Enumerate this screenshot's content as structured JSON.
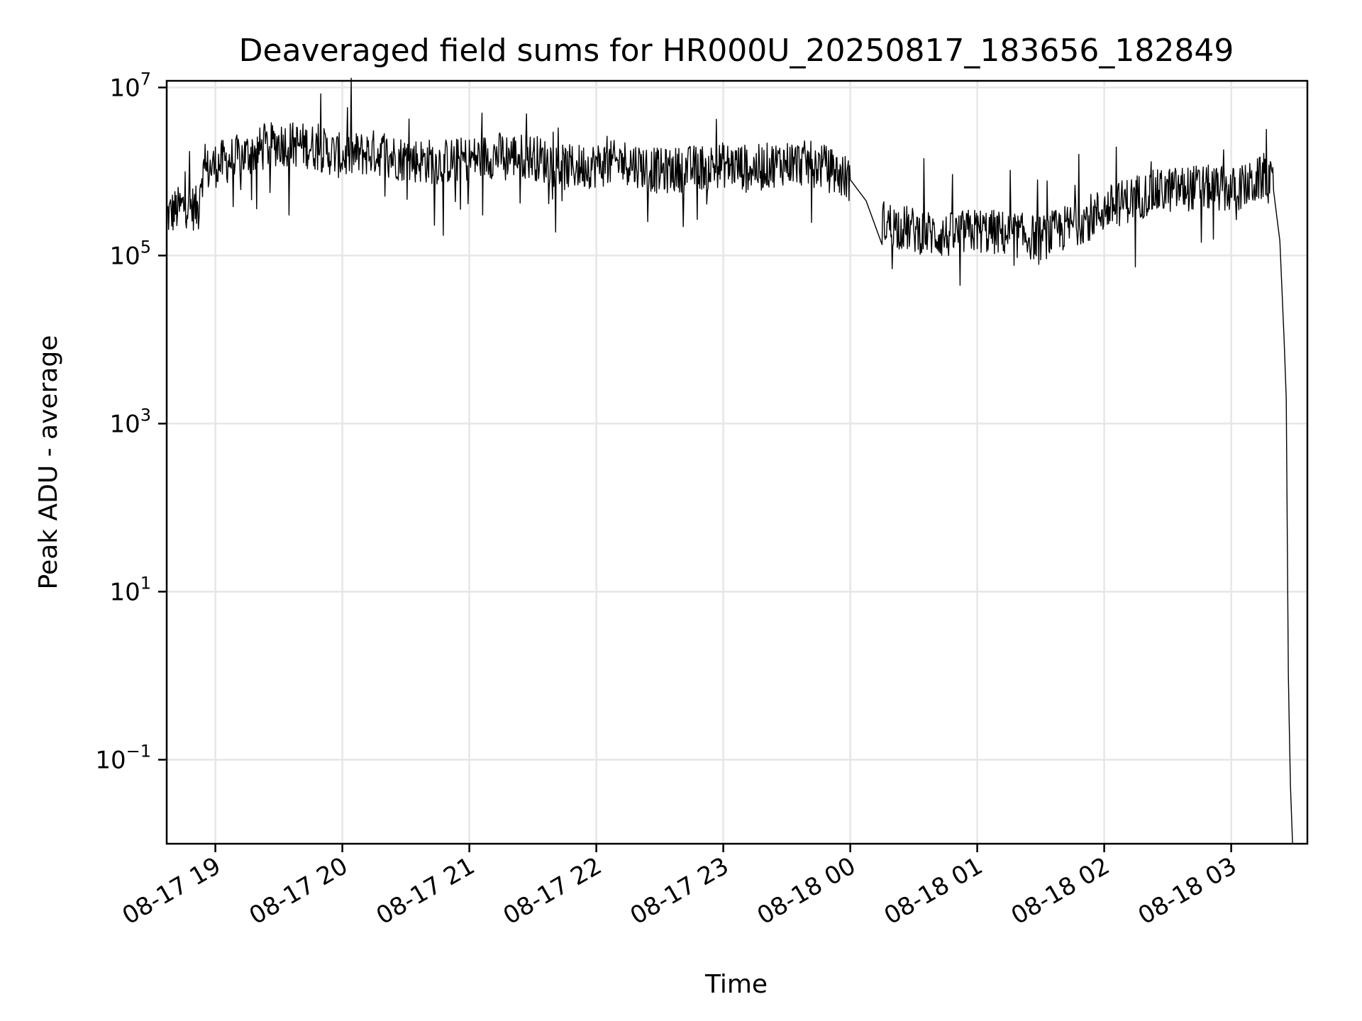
{
  "chart_data": {
    "type": "line",
    "title": "Deaveraged field sums for HR000U_20250817_183656_182849",
    "xlabel": "Time",
    "ylabel": "Peak ADU - average",
    "yscale": "log",
    "grid": true,
    "line_color": "#000000",
    "xlim": [
      "2025-08-17 18:37",
      "2025-08-18 03:36"
    ],
    "ylim": [
      0.01,
      12000000
    ],
    "x_ticks": [
      {
        "value": "2025-08-17 19:00",
        "label": "08-17 19"
      },
      {
        "value": "2025-08-17 20:00",
        "label": "08-17 20"
      },
      {
        "value": "2025-08-17 21:00",
        "label": "08-17 21"
      },
      {
        "value": "2025-08-17 22:00",
        "label": "08-17 22"
      },
      {
        "value": "2025-08-17 23:00",
        "label": "08-17 23"
      },
      {
        "value": "2025-08-18 00:00",
        "label": "08-18 00"
      },
      {
        "value": "2025-08-18 01:00",
        "label": "08-18 01"
      },
      {
        "value": "2025-08-18 02:00",
        "label": "08-18 02"
      },
      {
        "value": "2025-08-18 03:00",
        "label": "08-18 03"
      }
    ],
    "y_ticks": [
      {
        "value": 0.1,
        "base": "10",
        "exp": "−1"
      },
      {
        "value": 10,
        "base": "10",
        "exp": "1"
      },
      {
        "value": 1000,
        "base": "10",
        "exp": "3"
      },
      {
        "value": 100000,
        "base": "10",
        "exp": "5"
      },
      {
        "value": 10000000,
        "base": "10",
        "exp": "7"
      }
    ],
    "series": [
      {
        "x": [
          "2025-08-17 18:37",
          "2025-08-17 18:46",
          "2025-08-17 18:52",
          "2025-08-17 18:53",
          "2025-08-17 19:00",
          "2025-08-17 19:15",
          "2025-08-17 19:30",
          "2025-08-17 19:45",
          "2025-08-17 20:00",
          "2025-08-17 20:15",
          "2025-08-17 20:30",
          "2025-08-17 20:45",
          "2025-08-17 21:00",
          "2025-08-17 21:15",
          "2025-08-17 21:30",
          "2025-08-17 21:45",
          "2025-08-17 22:00",
          "2025-08-17 22:15",
          "2025-08-17 22:30",
          "2025-08-17 22:45",
          "2025-08-17 23:00",
          "2025-08-17 23:15",
          "2025-08-17 23:30",
          "2025-08-17 23:45",
          "2025-08-18 00:00",
          "2025-08-18 00:15",
          "2025-08-18 00:30",
          "2025-08-18 00:45",
          "2025-08-18 01:00",
          "2025-08-18 01:15",
          "2025-08-18 01:30",
          "2025-08-18 01:45",
          "2025-08-18 02:00",
          "2025-08-18 02:15",
          "2025-08-18 02:30",
          "2025-08-18 02:45",
          "2025-08-18 03:00",
          "2025-08-18 03:10",
          "2025-08-18 03:16",
          "2025-08-18 03:20",
          "2025-08-18 03:23",
          "2025-08-18 03:25",
          "2025-08-18 03:26",
          "2025-08-18 03:27",
          "2025-08-18 03:28",
          "2025-08-18 03:29"
        ],
        "y": [
          300000,
          400000,
          350000,
          900000,
          1200000,
          1600000,
          2200000,
          2000000,
          1500000,
          1700000,
          1400000,
          1300000,
          1400000,
          1600000,
          1500000,
          1100000,
          1200000,
          1300000,
          1000000,
          1100000,
          1200000,
          1100000,
          1300000,
          1200000,
          800000,
          250000,
          200000,
          170000,
          200000,
          180000,
          160000,
          230000,
          350000,
          500000,
          600000,
          650000,
          600000,
          700000,
          900000,
          600000,
          150000,
          10000,
          2000,
          1,
          0.05,
          0.01
        ]
      }
    ]
  }
}
